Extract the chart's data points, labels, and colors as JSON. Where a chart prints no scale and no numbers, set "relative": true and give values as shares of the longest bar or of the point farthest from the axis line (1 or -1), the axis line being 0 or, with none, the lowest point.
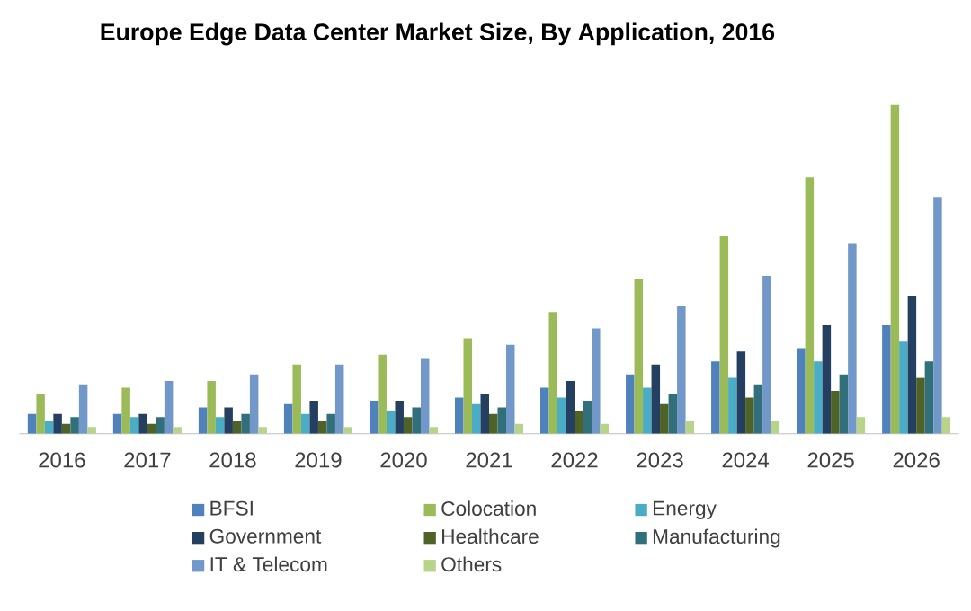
{
  "chart_data": {
    "type": "bar",
    "title": "Europe Edge Data Center Market Size, By Application, 2016",
    "relative": true,
    "legend": "bottom",
    "categories": [
      "2016",
      "2017",
      "2018",
      "2019",
      "2020",
      "2021",
      "2022",
      "2023",
      "2024",
      "2025",
      "2026"
    ],
    "series": [
      {
        "name": "BFSI",
        "color": "#4f81bd",
        "values": [
          0.06,
          0.06,
          0.08,
          0.09,
          0.1,
          0.11,
          0.14,
          0.18,
          0.22,
          0.26,
          0.33
        ]
      },
      {
        "name": "Colocation",
        "color": "#9bbb59",
        "values": [
          0.12,
          0.14,
          0.16,
          0.21,
          0.24,
          0.29,
          0.37,
          0.47,
          0.6,
          0.78,
          1
        ]
      },
      {
        "name": "Energy",
        "color": "#4bacc6",
        "values": [
          0.04,
          0.05,
          0.05,
          0.06,
          0.07,
          0.09,
          0.11,
          0.14,
          0.17,
          0.22,
          0.28
        ]
      },
      {
        "name": "Government",
        "color": "#243f60",
        "values": [
          0.06,
          0.06,
          0.08,
          0.1,
          0.1,
          0.12,
          0.16,
          0.21,
          0.25,
          0.33,
          0.42
        ]
      },
      {
        "name": "Healthcare",
        "color": "#4f6228",
        "values": [
          0.03,
          0.03,
          0.04,
          0.04,
          0.05,
          0.06,
          0.07,
          0.09,
          0.11,
          0.13,
          0.17
        ]
      },
      {
        "name": "Manufacturing",
        "color": "#31707a",
        "values": [
          0.05,
          0.05,
          0.06,
          0.06,
          0.08,
          0.08,
          0.1,
          0.12,
          0.15,
          0.18,
          0.22
        ]
      },
      {
        "name": "IT & Telecom",
        "color": "#7298c9",
        "values": [
          0.15,
          0.16,
          0.18,
          0.21,
          0.23,
          0.27,
          0.32,
          0.39,
          0.48,
          0.58,
          0.72
        ]
      },
      {
        "name": "Others",
        "color": "#b7d48a",
        "values": [
          0.02,
          0.02,
          0.02,
          0.02,
          0.02,
          0.03,
          0.03,
          0.04,
          0.04,
          0.05,
          0.05
        ]
      }
    ]
  }
}
